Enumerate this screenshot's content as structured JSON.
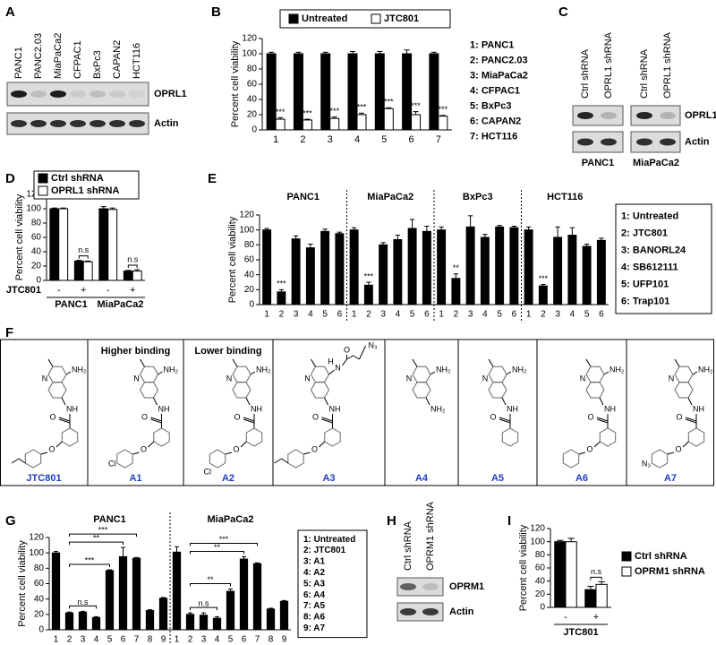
{
  "panel_labels": [
    "A",
    "B",
    "C",
    "D",
    "E",
    "F",
    "G",
    "H",
    "I"
  ],
  "blots": [
    {
      "lanes": [
        "PANC1",
        "PANC2.03",
        "MiaPaCa2",
        "CFPAC1",
        "BxPc3",
        "CAPAN2",
        "HCT116"
      ],
      "rows": [
        "OPRL1",
        "Actin"
      ]
    },
    {
      "lanes": [
        "Ctrl shRNA",
        "OPRL1 shRNA",
        "Ctrl shRNA",
        "OPRL1 shRNA"
      ],
      "rows": [
        "OPRL1",
        "Actin"
      ],
      "cell_lines": [
        "PANC1",
        "MiaPaCa2"
      ]
    },
    {
      "lanes": [
        "Ctrl shRNA",
        "OPRM1 shRNA"
      ],
      "rows": [
        "OPRM1",
        "Actin"
      ]
    }
  ],
  "structures": {
    "notes": [
      "Higher binding",
      "Lower binding"
    ],
    "compounds": [
      {
        "name": "JTC801",
        "atoms": [
          "N",
          "NH₂",
          "NH",
          "O",
          "O"
        ]
      },
      {
        "name": "A1",
        "atoms": [
          "N",
          "NH₂",
          "NH",
          "O",
          "O",
          "Cl"
        ]
      },
      {
        "name": "A2",
        "atoms": [
          "N",
          "NH₂",
          "NH",
          "O",
          "O",
          "Cl"
        ]
      },
      {
        "name": "A3",
        "atoms": [
          "N",
          "H",
          "N",
          "O",
          "N₃",
          "NH",
          "O",
          "O"
        ]
      },
      {
        "name": "A4",
        "atoms": [
          "N",
          "NH₂",
          "NH₂"
        ]
      },
      {
        "name": "A5",
        "atoms": [
          "N",
          "NH₂",
          "NH",
          "O"
        ]
      },
      {
        "name": "A6",
        "atoms": [
          "N",
          "NH₂",
          "NH",
          "O",
          "O"
        ]
      },
      {
        "name": "A7",
        "atoms": [
          "N",
          "NH₂",
          "NH",
          "O",
          "O",
          "N₃"
        ]
      }
    ]
  },
  "chart_data": [
    {
      "type": "bar",
      "y_label": "Percent cell viability",
      "categories": [
        "1",
        "2",
        "3",
        "4",
        "5",
        "6",
        "7"
      ],
      "series": [
        {
          "name": "Untreated",
          "color": "#000000",
          "values": [
            100,
            100,
            100,
            100,
            100,
            100,
            100
          ],
          "errors": [
            2,
            2,
            2,
            3,
            3,
            5,
            2
          ]
        },
        {
          "name": "JTC801",
          "color": "#ffffff",
          "values": [
            14,
            13,
            15,
            20,
            28,
            20,
            18
          ],
          "errors": [
            2,
            1,
            2,
            2,
            1,
            4,
            1
          ],
          "annotations": [
            "***",
            "***",
            "***",
            "***",
            "***",
            "***",
            "***"
          ]
        }
      ],
      "ylim": [
        0,
        120
      ],
      "yticks": [
        0,
        20,
        40,
        60,
        80,
        100,
        120
      ],
      "legend": "top",
      "key": [
        "1: PANC1",
        "2: PANC2.03",
        "3: MiaPaCa2",
        "4: CFPAC1",
        "5: BxPc3",
        "6: CAPAN2",
        "7: HCT116"
      ]
    },
    {
      "type": "bar",
      "y_label": "Percent cell viability",
      "x_label": "JTC801",
      "categories": [
        "-",
        "+",
        "-",
        "+"
      ],
      "groups": [
        "PANC1",
        "MiaPaCa2"
      ],
      "series": [
        {
          "name": "Ctrl shRNA",
          "color": "#000000",
          "values": [
            100,
            27,
            100,
            13
          ],
          "errors": [
            1,
            1,
            3,
            1
          ]
        },
        {
          "name": "OPRL1 shRNA",
          "color": "#ffffff",
          "values": [
            100,
            26,
            99,
            13
          ],
          "errors": [
            1,
            1,
            2,
            2
          ]
        }
      ],
      "annotations": [
        null,
        "n.s",
        null,
        "n.s"
      ],
      "ylim": [
        0,
        120
      ],
      "yticks": [
        0,
        20,
        40,
        60,
        80,
        100,
        120
      ],
      "legend": "top-left"
    },
    {
      "type": "bar",
      "y_label": "Percent cell viability",
      "color": "#000000",
      "categories": [
        "1",
        "2",
        "3",
        "4",
        "5",
        "6"
      ],
      "panels": [
        {
          "title": "PANC1",
          "values": [
            100,
            17,
            88,
            76,
            98,
            95
          ],
          "errors": [
            2,
            3,
            4,
            5,
            3,
            2
          ],
          "annotations": [
            null,
            "***",
            null,
            null,
            null,
            null
          ]
        },
        {
          "title": "MiaPaCa2",
          "values": [
            100,
            26,
            80,
            87,
            102,
            98
          ],
          "errors": [
            3,
            4,
            3,
            6,
            12,
            7
          ],
          "annotations": [
            null,
            "***",
            null,
            null,
            null,
            null
          ]
        },
        {
          "title": "BxPc3",
          "values": [
            100,
            35,
            104,
            90,
            104,
            103
          ],
          "errors": [
            4,
            6,
            15,
            4,
            2,
            2
          ],
          "annotations": [
            null,
            "**",
            null,
            null,
            null,
            null
          ]
        },
        {
          "title": "HCT116",
          "values": [
            100,
            25,
            90,
            93,
            78,
            86
          ],
          "errors": [
            4,
            2,
            14,
            10,
            3,
            3
          ],
          "annotations": [
            null,
            "***",
            null,
            null,
            null,
            null
          ]
        }
      ],
      "ylim": [
        0,
        120
      ],
      "yticks": [
        0,
        20,
        40,
        60,
        80,
        100,
        120
      ],
      "key": [
        "1: Untreated",
        "2: JTC801",
        "3: BANORL24",
        "4: SB612111",
        "5: UFP101",
        "6: Trap101"
      ]
    },
    {
      "type": "bar",
      "y_label": "Percent cell viability",
      "color": "#000000",
      "categories": [
        "1",
        "2",
        "3",
        "4",
        "5",
        "6",
        "7",
        "8",
        "9"
      ],
      "panels": [
        {
          "title": "PANC1",
          "values": [
            100,
            22,
            23,
            16,
            77,
            95,
            93,
            25,
            41
          ],
          "errors": [
            2,
            1,
            1,
            1,
            1,
            12,
            1,
            1,
            1
          ],
          "brackets": [
            {
              "between": [
                "2",
                "4"
              ],
              "label": "n.s"
            },
            {
              "between": [
                "2",
                "5"
              ],
              "label": "***"
            },
            {
              "between": [
                "2",
                "6"
              ],
              "label": "**"
            },
            {
              "between": [
                "2",
                "7"
              ],
              "label": "***"
            }
          ]
        },
        {
          "title": "MiaPaCa2",
          "values": [
            101,
            20,
            19,
            15,
            50,
            92,
            86,
            27,
            37
          ],
          "errors": [
            7,
            2,
            3,
            2,
            3,
            3,
            1,
            1,
            1
          ],
          "brackets": [
            {
              "between": [
                "2",
                "4"
              ],
              "label": "n.s"
            },
            {
              "between": [
                "2",
                "5"
              ],
              "label": "**"
            },
            {
              "between": [
                "2",
                "6"
              ],
              "label": "**"
            },
            {
              "between": [
                "2",
                "7"
              ],
              "label": "***"
            }
          ]
        }
      ],
      "ylim": [
        0,
        120
      ],
      "yticks": [
        0,
        20,
        40,
        60,
        80,
        100,
        120
      ],
      "key": [
        "1: Untreated",
        "2: JTC801",
        "3: A1",
        "4: A2",
        "5: A3",
        "6: A4",
        "7: A5",
        "8: A6",
        "9: A7"
      ]
    },
    {
      "type": "bar",
      "y_label": "Percent cell viability",
      "x_label": "JTC801",
      "categories": [
        "-",
        "+"
      ],
      "series": [
        {
          "name": "Ctrl shRNA",
          "color": "#000000",
          "values": [
            100,
            27
          ],
          "errors": [
            2,
            5
          ]
        },
        {
          "name": "OPRM1 shRNA",
          "color": "#ffffff",
          "values": [
            100,
            35
          ],
          "errors": [
            5,
            4
          ]
        }
      ],
      "annotations": [
        null,
        "n.s"
      ],
      "ylim": [
        0,
        120
      ],
      "yticks": [
        0,
        20,
        40,
        60,
        80,
        100,
        120
      ],
      "legend": "right"
    }
  ]
}
